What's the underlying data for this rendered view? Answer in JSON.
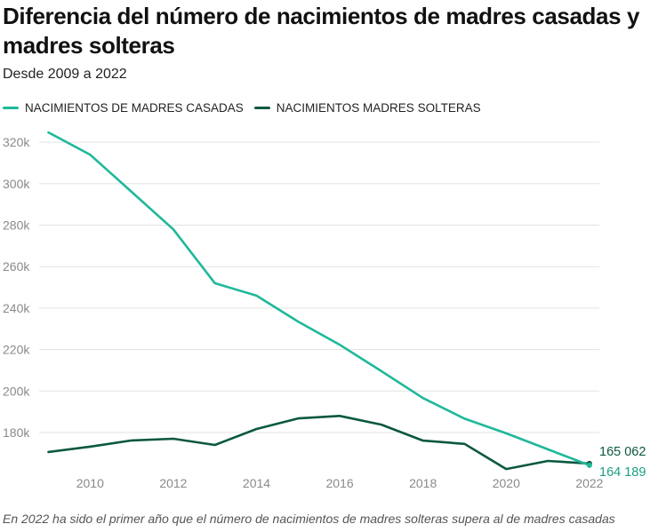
{
  "chart_data": {
    "type": "line",
    "title": "Diferencia del número de nacimientos de madres casadas y madres solteras",
    "subtitle": "Desde 2009 a 2022",
    "xlabel": "",
    "ylabel": "",
    "x": [
      2009,
      2010,
      2011,
      2012,
      2013,
      2014,
      2015,
      2016,
      2017,
      2018,
      2019,
      2020,
      2021,
      2022
    ],
    "x_ticks": [
      "2010",
      "2012",
      "2014",
      "2016",
      "2018",
      "2020",
      "2022"
    ],
    "y_ticks": [
      "180k",
      "200k",
      "220k",
      "240k",
      "260k",
      "280k",
      "300k",
      "320k"
    ],
    "ylim": [
      160000,
      330000
    ],
    "grid": true,
    "legend_position": "top-left",
    "series": [
      {
        "name": "NACIMIENTOS DE MADRES CASADAS",
        "color": "#1fb89a",
        "values": [
          324700,
          314000,
          296000,
          278000,
          252000,
          246000,
          233500,
          222300,
          209600,
          196600,
          186700,
          179600,
          171900,
          164189
        ],
        "end_label": "164 189"
      },
      {
        "name": "NACIMIENTOS MADRES SOLTERAS",
        "color": "#0b5840",
        "values": [
          170600,
          173200,
          176200,
          177000,
          174000,
          181700,
          186800,
          188000,
          183800,
          176100,
          174500,
          162400,
          166300,
          165062
        ],
        "end_label": "165 062"
      }
    ],
    "annotation": "En 2022 ha sido el primer año que el número de nacimientos de madres solteras supera al de madres casadas"
  }
}
